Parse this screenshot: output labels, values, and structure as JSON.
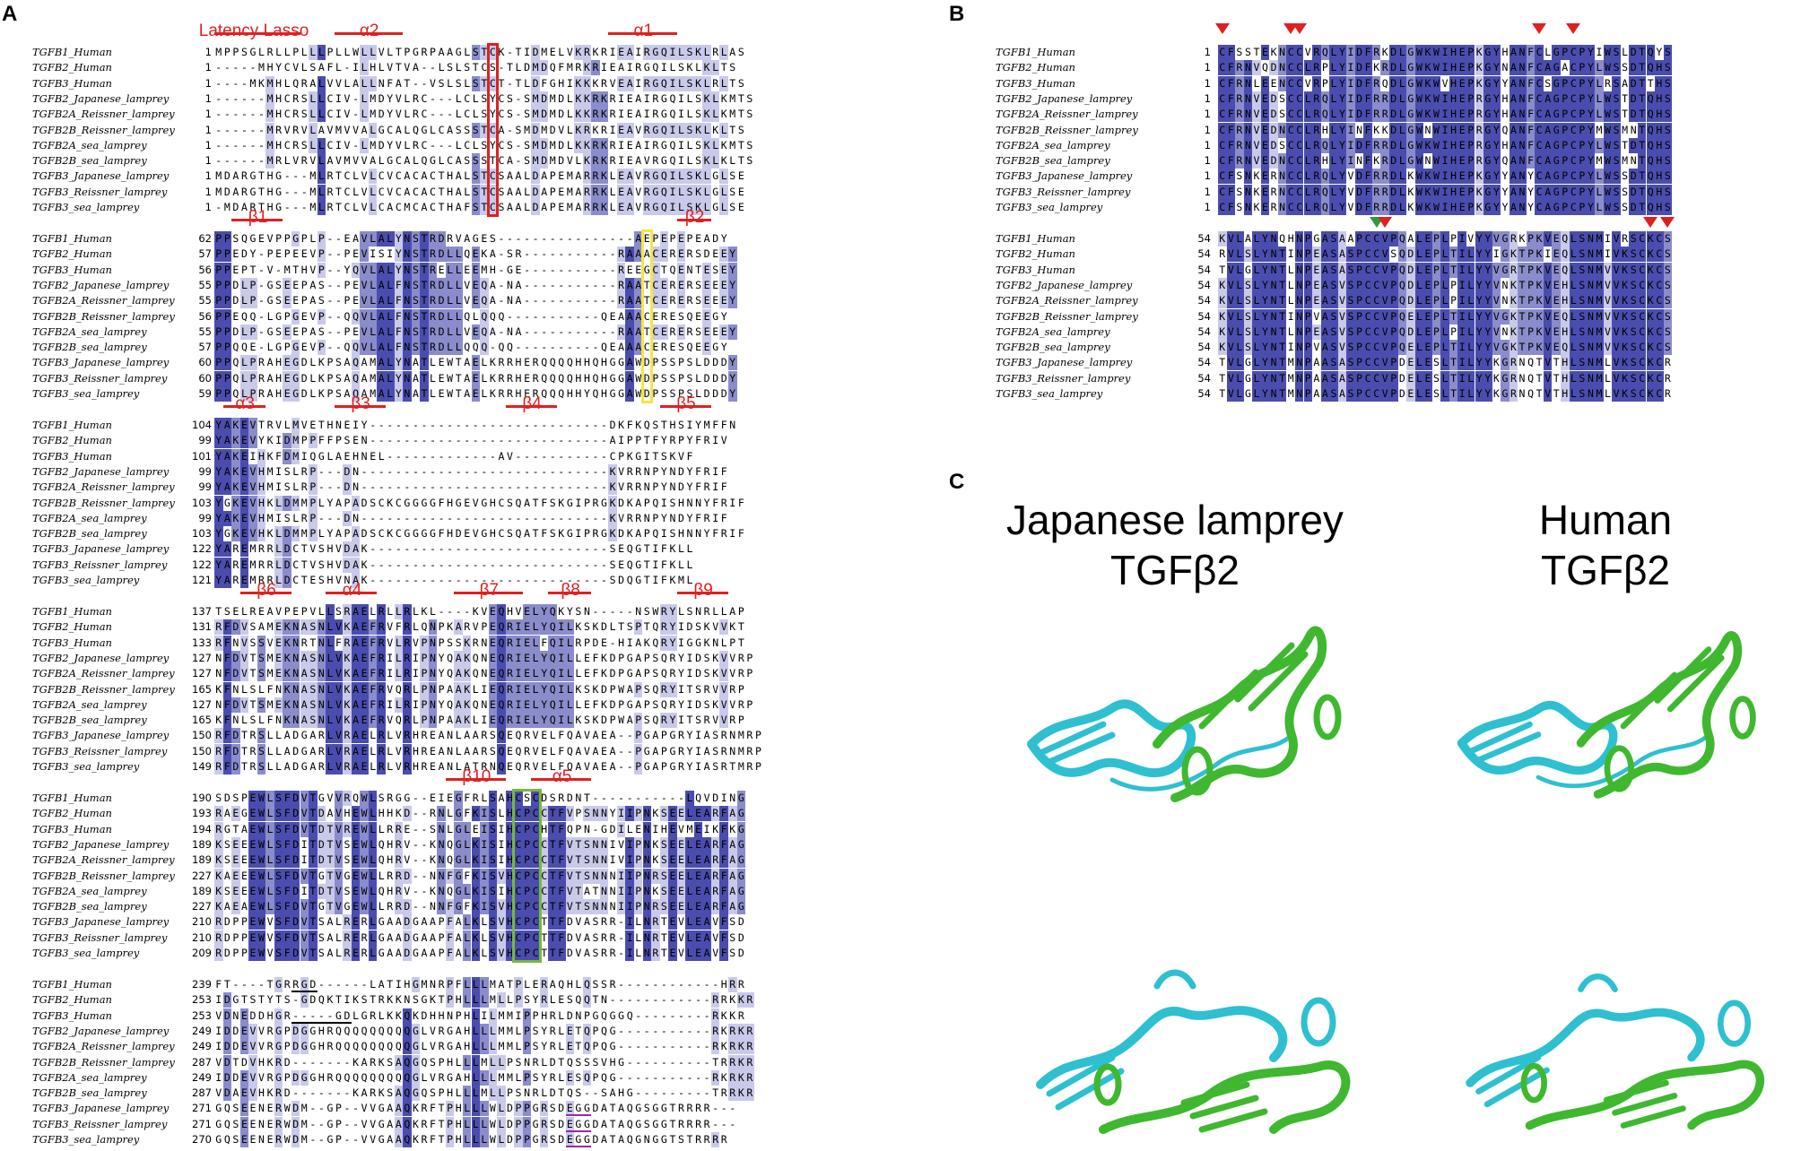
{
  "panels": {
    "A": "A",
    "B": "B",
    "C": "C"
  },
  "panel_c": {
    "left_title_line1": "Japanese lamprey",
    "left_title_line2": "TGFβ2",
    "right_title_line1": "Human",
    "right_title_line2": "TGFβ2",
    "colors": {
      "chain1": "#2ec0d0",
      "chain2": "#3fb830"
    }
  },
  "colors": {
    "dark": "#4a4dae",
    "mid": "#8a8ccc",
    "light": "#c9caea",
    "red": "#e02020",
    "yellow": "#f5e642",
    "green": "#2e9a3a",
    "purple": "#9a2aa0",
    "black": "#000000"
  },
  "names": [
    "TGFB1_Human",
    "TGFB2_Human",
    "TGFB3_Human",
    "TGFB2_Japanese_lamprey",
    "TGFB2A_Reissner_lamprey",
    "TGFB2B_Reissner_lamprey",
    "TGFB2A_sea_lamprey",
    "TGFB2B_sea_lamprey",
    "TGFB3_Japanese_lamprey",
    "TGFB3_Reissner_lamprey",
    "TGFB3_sea_lamprey"
  ],
  "A_blocks": [
    {
      "starts": [
        "1",
        "1",
        "1",
        "1",
        "1",
        "1",
        "1",
        "1",
        "1",
        "1",
        "1"
      ],
      "seqs": [
        "MPPSGLRLLPLLLPLLWLLVLTPGRPAAGLSTCK-TIDMELVKRKRIEAIRGQILSKLRLAS",
        "-----MHYCVLSAFL-ILHLVTVA--LSLSTCS-TLDMDQFMRKRIEAIRGQILSKLKLTS",
        "----MKMHLQRALVVLALLNFAT--VSLSLSTCT-TLDFGHIKKKRVEAIRGQILSKLRLTS",
        "------MHCRSLLCIV-LMDYVLRC---LCLSYCS-SMDMDLKKRKRIEAIRGQILSKLKMTS",
        "------MHCRSLLCIV-LMDYVLRC---LCLSYCS-SMDMDLKKRKRIEAIRGQILSKLKMTS",
        "------MRVRVLAVMVVALGCALQGLCASSSTCA-SMDMDVLKRKRIEAVRGQILSKLKLTS",
        "------MHCRSLLCIV-LMDYVLRC---LCLSYCS-SMDMDLKKRKRIEAIRGQILSKLKMTS",
        "------MRLVRVLAVMVVALGCALQGLCASSSTCA-SMDMDVLKRKRIEAVRGQILSKLKLTS",
        "MDARGTHG---MLRTCLVLCVCACACTHALSTCSAALDAPEMARRKLEAVRGQILSKLGLSE",
        "MDARGTHG---MLRTCLVLCVCACACTHALSTCSAALDAPEMARRKLEAVRGQILSKLGLSE",
        "-MDARTHG---MLRTCLVLCACMCACTHAFSTCSAALDAPEMARRKLEAVRGQILSKLGLSE"
      ]
    },
    {
      "starts": [
        "62",
        "57",
        "56",
        "55",
        "55",
        "56",
        "55",
        "57",
        "60",
        "60",
        "59"
      ],
      "seqs": [
        "PPSQGEVPPGPLP--EAVLALYNSTRDRVAGES----------------AEPEPEPEADY",
        "PPEDY-PEPEEVP--PEVISIYNSTRDLLQEKA-SR-----------RAAACERERSDEEY",
        "PPEPT-V-MTHVP--YQVLALYNSTRELLEEMH-GE-----------REEGCTQENTESEY",
        "PPDLP-GSEEPAS--PEVLALFNSTRDLLVEQA-NA-----------RAATCERERSEEEY",
        "PPDLP-GSEEPAS--PEVLALFNSTRDLLVEQA-NA-----------RAATCERERSEEEY",
        "PPEQQ-LGPGEVP--QQVLALFNSTRDLLQLQQQ-----------QEAAACERESQEEGY",
        "PPDLP-GSEEPAS--PEVLALFNSTRDLLVEQA-NA-----------RAATCERERSEEEY",
        "PPQQE-LGPGEVP--QQVLALFNSTRDLLQQQ-QQ----------QEAAACERESQEEGY",
        "PPQLPRAHEGDLKPSAQAMALYNATLEWTAELKRRHERQQQQHHQHGGAWDPSSPSLDDDY",
        "PPQLPRAHEGDLKPSAQAMALYNATLEWTAELKRRHERQQQQHHQHGGAWDPSSPSLDDDY",
        "PPQLPRAHEGDLKPSAQAMALYNATLEWTAELKRRHERQQQHHYQHGGAWDPSSPSLDDDY"
      ]
    },
    {
      "starts": [
        "104",
        "99",
        "101",
        "99",
        "99",
        "103",
        "99",
        "103",
        "122",
        "122",
        "121"
      ],
      "seqs": [
        "YAKEVTRVLMVETHNEIY----------------------------DKFKQSTHSIYMFFN",
        "YAKEVYKIDMPPFFPSEN----------------------------AIPPTFYRPYFRIV",
        "YAKEIHKFDMIQGLAEHNEL-------------AV-----------CPKGITSKVF",
        "YAKEVHMISLRP---DN-----------------------------KVRRNPYNDYFRIF",
        "YAKEVHMISLRP---DN-----------------------------KVRRNPYNDYFRIF",
        "YGKEVHKLDMMPLYAPADSCKCGGGGFHGEVGHCSQATFSKGIPRGKDKAPQISHNNYFRIF",
        "YAKEVHMISLRP---DN-----------------------------KVRRNPYNDYFRIF",
        "YGKEVHKLDMMPLYAPADSCKCGGGGFHDEVGHCSQATFSKGIPRGKDKAPQISHNNYFRIF",
        "YAREMRRLDCTVSHVDAK----------------------------SEQGTIFKLL",
        "YAREMRRLDCTVSHVDAK----------------------------SEQGTIFKLL",
        "YAREMRRLDCTESHVNAK----------------------------SDQGTIFKML"
      ]
    },
    {
      "starts": [
        "137",
        "131",
        "133",
        "127",
        "127",
        "165",
        "127",
        "165",
        "150",
        "150",
        "149"
      ],
      "seqs": [
        "TSELREAVPEPVLLSRAELRLLRLKL----KVEQHVELYQKYSN-----NSWRYLSNRLLAP",
        "RFDVSAMEKNASNLVKAEFRVFRLQNPKARVPEQRIELYQILKSKDLTSPTQRYIDSKVVKT",
        "RFNVSSVEKNRTNLFRAEFRVLRVPNPSSKRNEQRIELFQILRPDE-HIAKQRYIGGKNLPT",
        "NFDVTSMEKNASNLVKAEFRILRIPNYQAKQNEQRIELYQILLEFKDPGAPSQRYIDSKVVRP",
        "NFDVTSMEKNASNLVKAEFRILRIPNYQAKQNEQRIELYQILLEFKDPGAPSQRYIDSKVVRP",
        "KFNLSLFNKNASNLVKAEFRVQRLPNPAAKLIEQRIELYQILKSKDPWAPSQRYITSRVVRP",
        "NFDVTSMEKNASNLVKAEFRILRIPNYQAKQNEQRIELYQILLEFKDPGAPSQRYIDSKVVRP",
        "KFNLSLFNKNASNLVKAEFRVQRLPNPAAKLIEQRIELYQILKSKDPWAPSQRYITSRVVRP",
        "RFDTRSLLADGARLVRAELRLVRHREANLAARSQEQRVELFQAVAEA--PGAPGRYIASRNMRP",
        "RFDTRSLLADGARLVRAELRLVRHREANLAARSQEQRVELFQAVAEA--PGAPGRYIASRNMRP",
        "RFDTRSLLADGARLVRAELRLVRHREANLATRNQEQRVELFQAVAEA--PGAPGRYIASRTMRP"
      ]
    },
    {
      "starts": [
        "190",
        "193",
        "194",
        "189",
        "189",
        "227",
        "189",
        "227",
        "210",
        "210",
        "209"
      ],
      "seqs": [
        "SDSPEWLSFDVTGVVRQWLSRGG--EIEGFRLSAHCSCDSRDNT-----------LQVDING",
        "RAEGEWLSFDVTDAVHEWLHHKD--RNLGFKISLHCPCCTFVPSNNYIIPNKSEELEARFAG",
        "RGTAEWLSFDVTDTVREWLLRRE--SNLGLEISIHCPCHTFQPN-GDILENIHEVMEIKFKG",
        "KSEEEWLSFDITDTVSEWLQHRV--KNQGLKISIHCPCCTFVTSNNIVIPNKSEELEARFAG",
        "KSEEEWLSFDITDTVSEWLQHRV--KNQGLKISIHCPCCTFVTSNNIVIPNKSEELEARFAG",
        "KAEEEWLSFDVTGTVGEWLLRRD--NNFGFKISVHCPCCTFVTSNNNIIPNRSEELEARFAG",
        "KSEEEWLSFDITDTVSEWLQHRV--KNQGLKISIHCPCCTFVTATNNIIPNKSEELEARFAG",
        "KAEAEWLSFDVTGTVGEWLLRRD--NNFGFKISVHCPCCTFVTSNNNIIPNRSEELEARFAG",
        "RDPPEWVSFDVTSALRERLGAADGAAPFALKLSVHCPCTTFDVASRR-ILNRTEVLEAVFSD",
        "RDPPEWVSFDVTSALRERLGAADGAAPFALKLSVHCPCTTFDVASRR-ILNRTEVLEAVFSD",
        "RDPPEWVSFDVTSALRERLGAADGAAPFALKLSVHCPCTTFDVASRR-ILNRTEVLEAVFSD"
      ]
    },
    {
      "starts": [
        "239",
        "253",
        "253",
        "249",
        "249",
        "287",
        "249",
        "287",
        "271",
        "271",
        "270"
      ],
      "seqs": [
        "FT----TGRRGD------LATIHGMNRPFLLLMATPLERAQHLQSSR------------HRR",
        "IDGTSTYTS-GDQKTIKSTRKKNSGKTPHLLLMLLPSYRLESQQTN------------RRKKR",
        "VDNEDDHGR-----GDLGRLKKQKDHHNPHLILMMIPPHRLDNPGQGGQ---------RKKR",
        "IDDEVVRGPDGGHRQQQQQQQQQGLVRGAHLLLMMLPSYRLETQPQG-----------RKRKR",
        "IDDEVVRGPDGGHRQQQQQQQQQGLVRGAHLLLMMLPSYRLETQPQG-----------RKRKR",
        "VDTDVHKRD-------KARKSAQGQSPHLLLMLLPSNRLDTQSSSVHG----------TRRKR",
        "IDDEVVRGPDGGHRQQQQQQQQQGLVRGAHLLLMMLPSYRLESQPQG-----------RKRKR",
        "VDAEVHKRD-------KARKSAQGQSPHLLLMLLPSNRLDTQS--SAHG---------TRRKR",
        "GQSEENERWDM--GP--VVGAAQKRFTPHLLLWLDPPGRSDEGGDATAQGSGGTRRRR---",
        "GQSEENERWDM--GP--VVGAAQKRFTPHLLLWLDPPGRSDEGGDATAQGSGGTRRRR---",
        "GQSEENERWDM--GP--VVGAAQKRFTPHLLLWLDPPGRSDEGGDATAQGNGGTSTRRRR"
      ]
    }
  ],
  "B_blocks": [
    {
      "starts": [
        "1",
        "1",
        "1",
        "1",
        "1",
        "1",
        "1",
        "1",
        "1",
        "1",
        "1"
      ],
      "seqs": [
        "CFSSTEKNCCVRQLYIDFRKDLGWKWIHEPKGYHANFCLGPCPYIWSLDTQYS",
        "CFRNVQDNCCLRPLYIDFKRDLGWKWIHEPKGYNANFCAGACPYLWSSDTQHS",
        "CFRNLEENCCVRPLYIDFRQDLGWKWVHEPKGYYANFCSGPCPYLRSADTTHS",
        "CFRNVEDSCCLRQLYIDFRRDLGWKWIHEPRGYHANFCAGPCPYLWSTDTQHS",
        "CFRNVEDSCCLRQLYIDFRRDLGWKWIHEPRGYHANFCAGPCPYLWSTDTQHS",
        "CFRNVEDNCCLRHLYINFKKDLGWNWIHEPRGYQANFCAGPCPYMWSMNTQHS",
        "CFRNVEDSCCLRQLYIDFRRDLGWKWIHEPRGYHANFCAGPCPYLWSTDTQHS",
        "CFRNVEDNCCLRHLYINFKRDLGWNWIHEPRGYQANFCAGPCPYMWSMNTQHS",
        "CFSNKERNCCLRQLYVDFRRDLKWKWIHEPKGYYANYCAGPCPYLWSSDTQHS",
        "CFSNKERNCCLRQLYVDFRRDLKWKWIHEPKGYYANYCAGPCPYLWSSDTQHS",
        "CFSNKERNCCLRQLYVDFRRDLKWKWIHEPKGYYANYCAGPCPYLWSSDTQHS"
      ]
    },
    {
      "starts": [
        "54",
        "54",
        "54",
        "54",
        "54",
        "54",
        "54",
        "54",
        "54",
        "54",
        "54"
      ],
      "seqs": [
        "KVLALYNQHNPGASAAPCCVPQALEPLPIVYYVGRKPKVEQLSNMIVRSCKCS",
        "RVLSLYNTINPEASASPCCVSQDLEPLTILYYIGKTPKIEQLSNMIVKSCKCS",
        "TVLGLYNTLNPEASASPCCVPQDLEPLTILYYVGRTPKVEQLSNMVVKSCKCS",
        "KVLSLYNTLNPEASVSPCCVPQDLEPLPILYYVNKTPKVEHLSNMVVKSCKCS",
        "KVLSLYNTLNPEASVSPCCVPQDLEPLPILYYVNKTPKVEHLSNMVVKSCKCS",
        "KVLSLYNTINPVASVSPCCVPQELEPLTILYYVGKTPKVEQLSNMVVKSCKCS",
        "KVLSLYNTLNPEASVSPCCVPQDLEPLPILYYVNKTPKVEHLSNMVVKSCKCS",
        "KVLSLYNTINPVASVSPCCVPQELEPLTILYYVGKTPKVEQLSNMVVKSCKCS",
        "TVLGLYNTMNPAASASPCCVPDELESLTILYYKGRNQTVTHLSNMLVKSCKCR",
        "TVLGLYNTMNPAASASPCCVPDELESLTILYYKGRNQTVTHLSNMLVKSCKCR",
        "TVLGLYNTMNPAASASPCCVPDELESLTILYYKGRNQTVTHLSNMLVKSCKCR"
      ]
    }
  ],
  "A_annotations": [
    {
      "label": "α1",
      "block": 0,
      "col_from": 46,
      "col_to": 54
    },
    {
      "label": "Latency Lasso",
      "block": 0,
      "col_from": 0,
      "col_to": 10
    },
    {
      "label": "α2",
      "block": 0,
      "col_from": 14,
      "col_to": 22
    },
    {
      "label": "β1",
      "block": 1,
      "col_from": 2,
      "col_to": 8
    },
    {
      "label": "β2",
      "block": 1,
      "col_from": 54,
      "col_to": 58
    },
    {
      "label": "α3",
      "block": 2,
      "col_from": 1,
      "col_to": 6
    },
    {
      "label": "β3",
      "block": 2,
      "col_from": 14,
      "col_to": 20
    },
    {
      "label": "β4",
      "block": 2,
      "col_from": 34,
      "col_to": 40
    },
    {
      "label": "β5",
      "block": 2,
      "col_from": 52,
      "col_to": 58
    },
    {
      "label": "β6",
      "block": 3,
      "col_from": 3,
      "col_to": 9
    },
    {
      "label": "α4",
      "block": 3,
      "col_from": 13,
      "col_to": 19
    },
    {
      "label": "β7",
      "block": 3,
      "col_from": 28,
      "col_to": 36
    },
    {
      "label": "β8",
      "block": 3,
      "col_from": 39,
      "col_to": 44
    },
    {
      "label": "β9",
      "block": 3,
      "col_from": 54,
      "col_to": 60
    },
    {
      "label": "β10",
      "block": 4,
      "col_from": 27,
      "col_to": 34
    },
    {
      "label": "α5",
      "block": 4,
      "col_from": 37,
      "col_to": 44
    }
  ]
}
